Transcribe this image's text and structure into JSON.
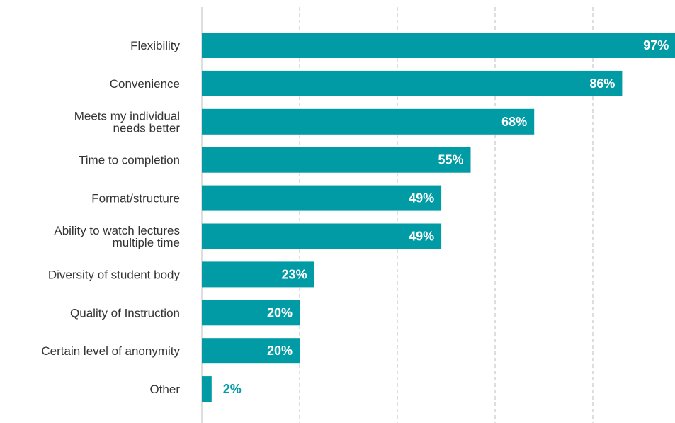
{
  "chart_data": {
    "type": "bar",
    "orientation": "horizontal",
    "categories": [
      [
        "Flexibility"
      ],
      [
        "Convenience"
      ],
      [
        "Meets my individual",
        "needs better"
      ],
      [
        "Time to completion"
      ],
      [
        "Format/structure"
      ],
      [
        "Ability to watch lectures",
        "multiple time"
      ],
      [
        "Diversity of student body"
      ],
      [
        "Quality of Instruction"
      ],
      [
        "Certain level of anonymity"
      ],
      [
        "Other"
      ]
    ],
    "values": [
      97,
      86,
      68,
      55,
      49,
      49,
      23,
      20,
      20,
      2
    ],
    "value_labels": [
      "97%",
      "86%",
      "68%",
      "55%",
      "49%",
      "49%",
      "23%",
      "20%",
      "20%",
      "2%"
    ],
    "xlim": [
      0,
      100
    ],
    "grid": true,
    "title": "",
    "xlabel": "",
    "ylabel": "",
    "colors": {
      "bar": "#009ba4",
      "label_inside": "#ffffff",
      "label_outside": "#009ba4",
      "category_text": "#333333",
      "grid": "#bdbdbd"
    }
  }
}
